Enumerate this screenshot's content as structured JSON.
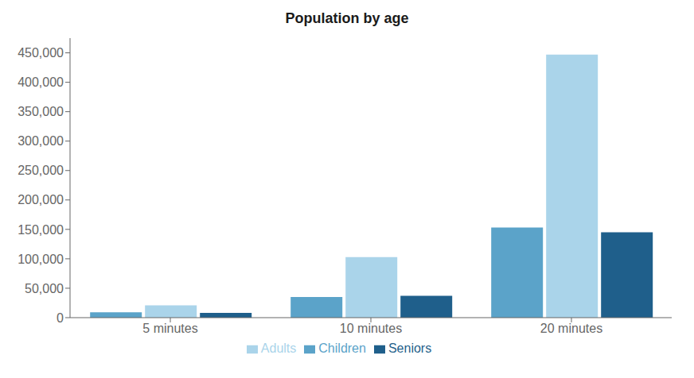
{
  "chart_data": {
    "type": "bar",
    "title": "Population by age",
    "categories": [
      "5 minutes",
      "10 minutes",
      "20 minutes"
    ],
    "series": [
      {
        "name": "Children",
        "color": "#5ba3c9",
        "values": [
          9000,
          35000,
          153000
        ]
      },
      {
        "name": "Adults",
        "color": "#aad4ea",
        "values": [
          21000,
          103000,
          447000
        ]
      },
      {
        "name": "Seniors",
        "color": "#1f5f8b",
        "values": [
          8000,
          37000,
          145000
        ]
      }
    ],
    "ylim": [
      0,
      475000
    ],
    "yticks": [
      0,
      {
        "value": 50000,
        "label": "50,000"
      },
      {
        "value": 100000,
        "label": "100,000"
      },
      {
        "value": 150000,
        "label": "150,000"
      },
      {
        "value": 200000,
        "label": "200,000"
      },
      {
        "value": 250000,
        "label": "250,000"
      },
      {
        "value": 300000,
        "label": "300,000"
      },
      {
        "value": 350000,
        "label": "350,000"
      },
      {
        "value": 400000,
        "label": "400,000"
      },
      {
        "value": 450000,
        "label": "450,000"
      }
    ],
    "grid": false,
    "legend": "bottom"
  }
}
